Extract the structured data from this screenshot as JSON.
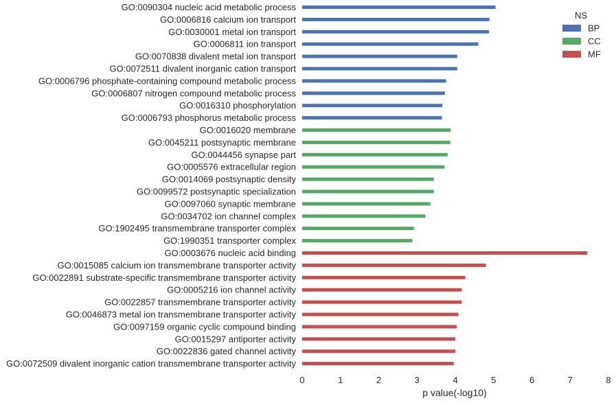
{
  "chart_data": {
    "type": "bar",
    "orientation": "horizontal",
    "xlabel": "p value(-log10)",
    "xlim": [
      0,
      8
    ],
    "xticks": [
      "0",
      "1",
      "2",
      "3",
      "4",
      "5",
      "6",
      "7",
      "8"
    ],
    "grid": false,
    "legend": {
      "title": "NS",
      "placement": "top-right",
      "entries": [
        {
          "name": "BP",
          "color": "#4c72b0"
        },
        {
          "name": "CC",
          "color": "#55a868"
        },
        {
          "name": "MF",
          "color": "#c44e52"
        }
      ]
    },
    "categories": [
      "GO:0090304 nucleic acid metabolic process",
      "GO:0006816 calcium ion transport",
      "GO:0030001 metal ion transport",
      "GO:0006811 ion transport",
      "GO:0070838 divalent metal ion transport",
      "GO:0072511 divalent inorganic cation transport",
      "GO:0006796 phosphate-containing compound metabolic process",
      "GO:0006807 nitrogen compound metabolic process",
      "GO:0016310 phosphorylation",
      "GO:0006793 phosphorus metabolic process",
      "GO:0016020 membrane",
      "GO:0045211 postsynaptic membrane",
      "GO:0044456 synapse part",
      "GO:0005576 extracellular region",
      "GO:0014069 postsynaptic density",
      "GO:0099572 postsynaptic specialization",
      "GO:0097060 synaptic membrane",
      "GO:0034702 ion channel complex",
      "GO:1902495 transmembrane transporter complex",
      "GO:1990351 transporter complex",
      "GO:0003676 nucleic acid binding",
      "GO:0015085 calcium ion transmembrane transporter activity",
      "GO:0022891 substrate-specific transmembrane transporter activity",
      "GO:0005216 ion channel activity",
      "GO:0022857 transmembrane transporter activity",
      "GO:0046873 metal ion transmembrane transporter activity",
      "GO:0097159 organic cyclic compound binding",
      "GO:0015297 antiporter activity",
      "GO:0022836 gated channel activity",
      "GO:0072509 divalent inorganic cation transmembrane transporter activity"
    ],
    "namespace": [
      "BP",
      "BP",
      "BP",
      "BP",
      "BP",
      "BP",
      "BP",
      "BP",
      "BP",
      "BP",
      "CC",
      "CC",
      "CC",
      "CC",
      "CC",
      "CC",
      "CC",
      "CC",
      "CC",
      "CC",
      "MF",
      "MF",
      "MF",
      "MF",
      "MF",
      "MF",
      "MF",
      "MF",
      "MF",
      "MF"
    ],
    "values": [
      5.05,
      4.89,
      4.88,
      4.6,
      4.05,
      4.05,
      3.76,
      3.73,
      3.66,
      3.65,
      3.88,
      3.87,
      3.8,
      3.72,
      3.44,
      3.44,
      3.35,
      3.22,
      2.92,
      2.88,
      7.45,
      4.8,
      4.26,
      4.17,
      4.17,
      4.08,
      4.04,
      4.0,
      4.0,
      3.96
    ]
  }
}
